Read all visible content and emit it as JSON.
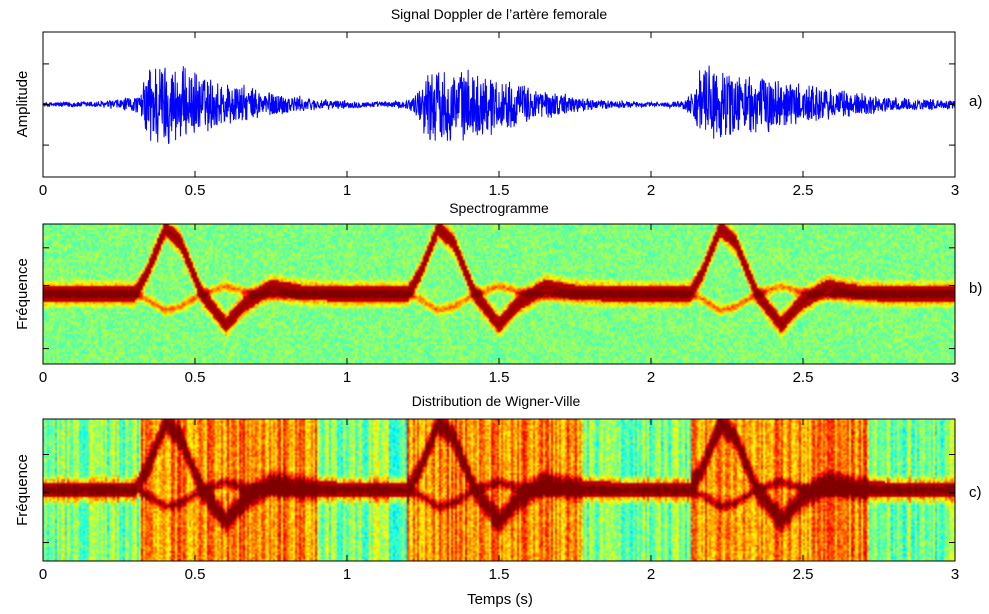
{
  "chart_data": [
    {
      "type": "line",
      "title": "Signal Doppler de l’artère femorale",
      "xlabel": "",
      "ylabel": "Amplitude",
      "panel_tag": "a)",
      "xlim": [
        0,
        3
      ],
      "ylim": [
        -1.5,
        1.5
      ],
      "x_ticks": [
        0,
        0.5,
        1,
        1.5,
        2,
        2.5,
        3
      ],
      "x_tick_labels": [
        "0",
        "0.5",
        "1",
        "1.5",
        "2",
        "2.5",
        "3"
      ],
      "line_color": "#0000ff",
      "series": [
        {
          "x": [
            0,
            0.2,
            0.32,
            0.35,
            0.38,
            0.45,
            0.55,
            0.7,
            0.9,
            1.1,
            1.2,
            1.23,
            1.27,
            1.35,
            1.45,
            1.6,
            1.8,
            2.0,
            2.1,
            2.13,
            2.17,
            2.25,
            2.4,
            2.6,
            2.8,
            3.0
          ],
          "envelope": [
            0.05,
            0.08,
            0.2,
            1.0,
            1.0,
            0.85,
            0.6,
            0.35,
            0.12,
            0.06,
            0.1,
            0.3,
            0.85,
            0.8,
            0.7,
            0.4,
            0.12,
            0.05,
            0.08,
            0.25,
            0.9,
            0.75,
            0.6,
            0.35,
            0.15,
            0.1
          ]
        }
      ]
    },
    {
      "type": "heatmap",
      "title": "Spectrogramme",
      "xlabel": "",
      "ylabel": "Fréquence",
      "panel_tag": "b)",
      "xlim": [
        0,
        3
      ],
      "ylim": [
        -1,
        1
      ],
      "x_ticks": [
        0,
        0.5,
        1,
        1.5,
        2,
        2.5,
        3
      ],
      "x_tick_labels": [
        "0",
        "0.5",
        "1",
        "1.5",
        "2",
        "2.5",
        "3"
      ],
      "colormap": "jet",
      "background_level": 0.5,
      "ridge": {
        "x": [
          0,
          0.3,
          0.34,
          0.4,
          0.45,
          0.52,
          0.6,
          0.66,
          0.75,
          0.85,
          1.0,
          1.2,
          1.24,
          1.3,
          1.35,
          1.42,
          1.5,
          1.56,
          1.65,
          1.75,
          1.9,
          2.13,
          2.17,
          2.23,
          2.28,
          2.35,
          2.43,
          2.49,
          2.58,
          2.68,
          2.8,
          3.0
        ],
        "y": [
          0,
          0,
          0.3,
          0.95,
          0.75,
          0.0,
          -0.45,
          -0.15,
          0.1,
          0.02,
          0,
          0,
          0.3,
          0.95,
          0.75,
          0.0,
          -0.45,
          -0.15,
          0.1,
          0.02,
          0,
          0,
          0.3,
          0.95,
          0.75,
          0.0,
          -0.45,
          -0.15,
          0.1,
          0.02,
          0,
          0
        ]
      }
    },
    {
      "type": "heatmap",
      "title": "Distribution de Wigner-Ville",
      "xlabel": "Temps (s)",
      "ylabel": "Fréquence",
      "panel_tag": "c)",
      "xlim": [
        0,
        3
      ],
      "ylim": [
        -1,
        1
      ],
      "x_ticks": [
        0,
        0.5,
        1,
        1.5,
        2,
        2.5,
        3
      ],
      "x_tick_labels": [
        "0",
        "0.5",
        "1",
        "1.5",
        "2",
        "2.5",
        "3"
      ],
      "colormap": "jet",
      "background_level": 0.6,
      "ridge": {
        "x": [
          0,
          0.3,
          0.34,
          0.4,
          0.45,
          0.52,
          0.6,
          0.66,
          0.75,
          0.85,
          1.0,
          1.2,
          1.24,
          1.3,
          1.35,
          1.42,
          1.5,
          1.56,
          1.65,
          1.75,
          1.9,
          2.13,
          2.17,
          2.23,
          2.28,
          2.35,
          2.43,
          2.49,
          2.58,
          2.68,
          2.8,
          3.0
        ],
        "y": [
          0,
          0,
          0.3,
          0.95,
          0.75,
          0.0,
          -0.45,
          -0.15,
          0.1,
          0.02,
          0,
          0,
          0.3,
          0.95,
          0.75,
          0.0,
          -0.45,
          -0.15,
          0.1,
          0.02,
          0,
          0,
          0.3,
          0.95,
          0.75,
          0.0,
          -0.45,
          -0.15,
          0.1,
          0.02,
          0,
          0
        ]
      },
      "hot_bands_x": [
        [
          0.32,
          0.9
        ],
        [
          1.2,
          1.78
        ],
        [
          2.13,
          2.72
        ]
      ]
    }
  ]
}
